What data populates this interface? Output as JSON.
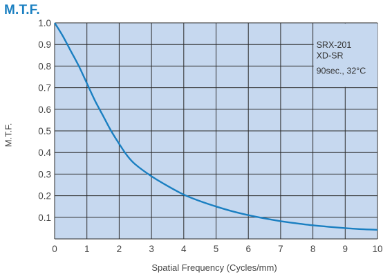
{
  "colors": {
    "title": "#1a7fc1",
    "plot_bg": "#c6d8ef",
    "grid": "#2a2a2a",
    "curve": "#1a7fc1"
  },
  "chart_data": {
    "type": "line",
    "title": "M.T.F.",
    "xlabel": "Spatial Frequency (Cycles/mm)",
    "ylabel": "M.T.F.",
    "xlim": [
      0,
      10
    ],
    "ylim": [
      0,
      1.0
    ],
    "x_ticks": [
      "0",
      "1",
      "2",
      "3",
      "4",
      "5",
      "6",
      "7",
      "8",
      "9",
      "10"
    ],
    "y_ticks": [
      "1.0",
      "0.9",
      "0.8",
      "0.7",
      "0.6",
      "0.5",
      "0.4",
      "0.3",
      "0.2",
      "0.1"
    ],
    "grid": true,
    "annotation": [
      "SRX-201",
      "XD-SR",
      "90sec., 32°C"
    ],
    "series": [
      {
        "x": [
          0,
          0.25,
          0.5,
          0.75,
          1,
          1.25,
          1.5,
          1.75,
          2,
          2.25,
          2.5,
          3,
          3.5,
          4,
          4.5,
          5,
          5.5,
          6,
          6.5,
          7,
          7.5,
          8,
          8.5,
          9,
          9.5,
          10
        ],
        "y": [
          1.0,
          0.94,
          0.87,
          0.8,
          0.72,
          0.64,
          0.57,
          0.5,
          0.44,
          0.385,
          0.345,
          0.29,
          0.245,
          0.205,
          0.175,
          0.15,
          0.128,
          0.11,
          0.095,
          0.082,
          0.072,
          0.063,
          0.056,
          0.05,
          0.045,
          0.042
        ]
      }
    ]
  }
}
